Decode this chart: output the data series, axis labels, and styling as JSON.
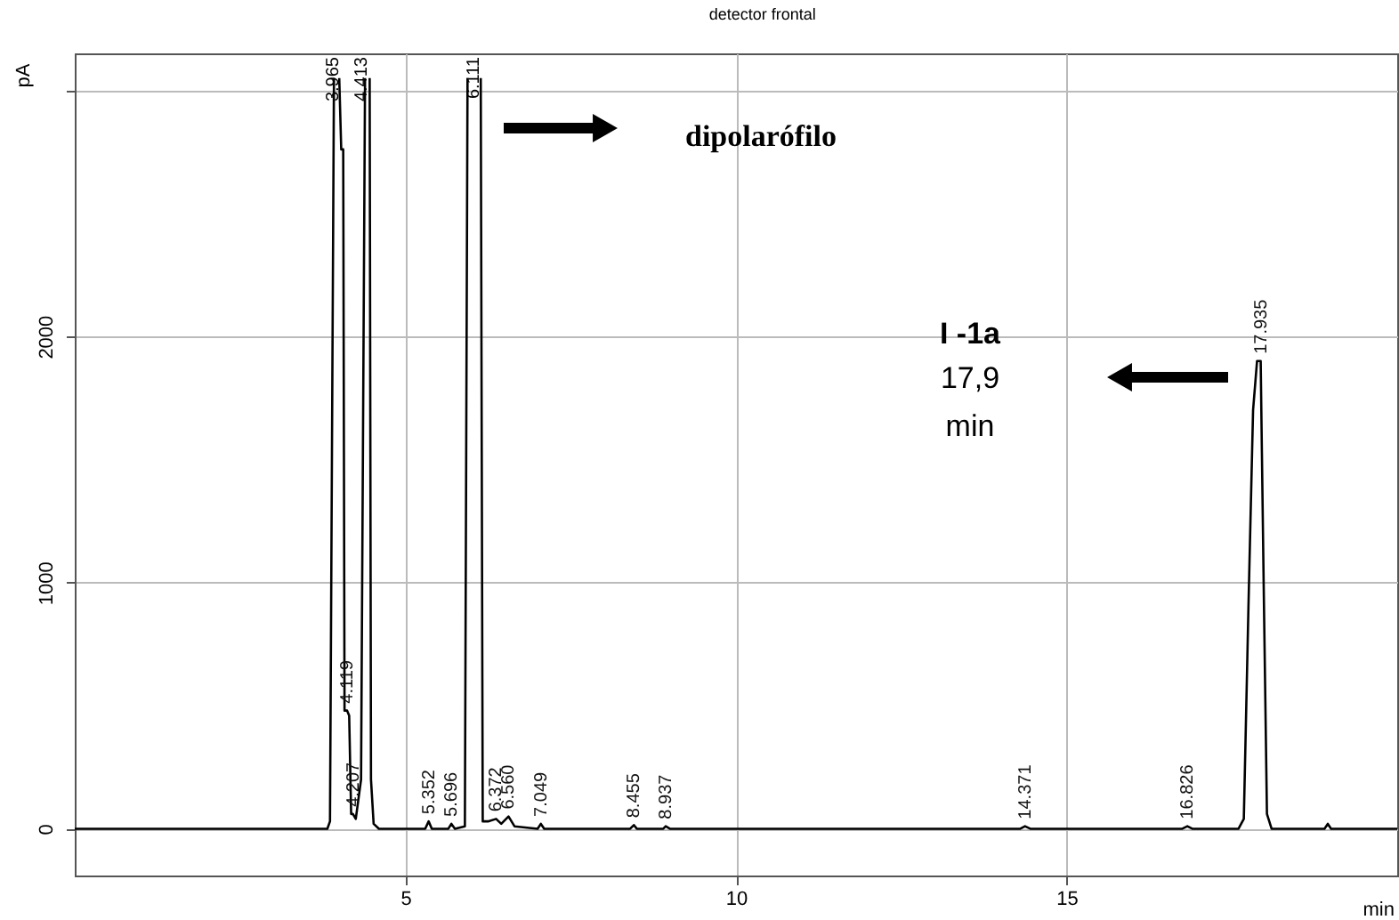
{
  "chart_data": {
    "type": "line",
    "title": "detector frontal",
    "xlabel": "min",
    "ylabel": "pA",
    "xlim": [
      0,
      20
    ],
    "ylim": [
      -190,
      3150
    ],
    "xticks": [
      5,
      10,
      15
    ],
    "yticks": [
      0,
      1000,
      2000,
      {
        "value": 3000,
        "label": null
      }
    ],
    "grid": true,
    "x": [
      0,
      3.82,
      3.86,
      3.92,
      3.95,
      4.0,
      4.03,
      4.06,
      4.08,
      4.119,
      4.15,
      4.18,
      4.207,
      4.25,
      4.33,
      4.39,
      4.42,
      4.46,
      4.48,
      4.52,
      4.6,
      5.3,
      5.352,
      5.4,
      5.65,
      5.696,
      5.75,
      5.9,
      5.94,
      6.04,
      6.14,
      6.17,
      6.25,
      6.372,
      6.45,
      6.56,
      6.65,
      7.0,
      7.049,
      7.1,
      8.4,
      8.455,
      8.5,
      8.9,
      8.937,
      9.0,
      14.3,
      14.371,
      14.45,
      16.75,
      16.826,
      16.9,
      17.6,
      17.68,
      17.75,
      17.82,
      17.88,
      17.935,
      17.98,
      18.03,
      18.1,
      18.9,
      18.95,
      19.0,
      20
    ],
    "series": [
      {
        "color": "#000000",
        "values": [
          0,
          0,
          30,
          3050,
          null,
          3050,
          2760,
          2760,
          480,
          480,
          460,
          60,
          60,
          40,
          200,
          3050,
          null,
          3050,
          200,
          20,
          0,
          0,
          30,
          0,
          0,
          20,
          0,
          10,
          3050,
          null,
          3050,
          30,
          30,
          40,
          20,
          50,
          10,
          0,
          20,
          0,
          0,
          15,
          0,
          0,
          10,
          0,
          0,
          10,
          0,
          0,
          10,
          0,
          0,
          40,
          900,
          1700,
          1900,
          1900,
          1000,
          60,
          0,
          0,
          20,
          0,
          0
        ]
      }
    ],
    "annotations": [
      "3.965",
      "4.413",
      "6.111",
      {
        "text": "4.119",
        "x": 4.119,
        "y": 480
      },
      {
        "text": "4.207",
        "x": 4.207,
        "y": 60
      },
      {
        "text": "5.352",
        "x": 5.352,
        "y": 30
      },
      {
        "text": "5.696",
        "x": 5.696,
        "y": 20
      },
      {
        "text": "6.372",
        "x": 6.372,
        "y": 40
      },
      {
        "text": "6.560",
        "x": 6.56,
        "y": 50
      },
      {
        "text": "7.049",
        "x": 7.049,
        "y": 20
      },
      {
        "text": "8.455",
        "x": 8.455,
        "y": 15
      },
      {
        "text": "8.937",
        "x": 8.937,
        "y": 10
      },
      {
        "text": "14.371",
        "x": 14.371,
        "y": 10
      },
      {
        "text": "16.826",
        "x": 16.826,
        "y": 10
      },
      {
        "text": "17.935",
        "x": 17.935,
        "y": 1900
      },
      "dipolarófilo",
      "I -1a",
      "17,9",
      "min"
    ]
  }
}
